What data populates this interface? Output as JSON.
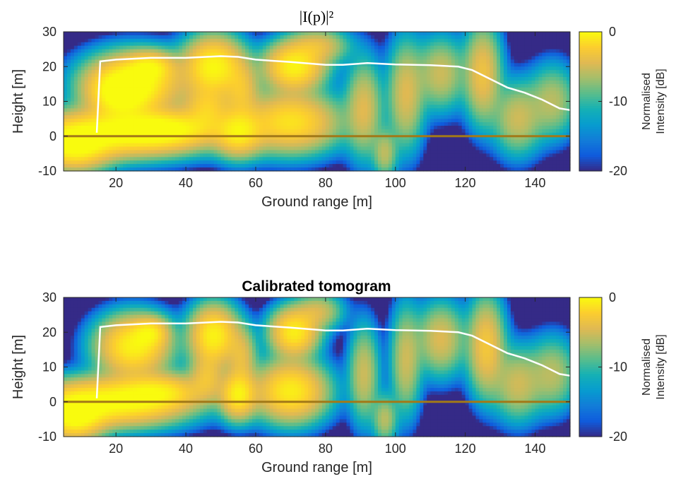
{
  "chart_data": [
    {
      "type": "heatmap",
      "title": "|I(p)|²",
      "xlabel": "Ground range [m]",
      "ylabel": "Height [m]",
      "xlim": [
        5,
        150
      ],
      "ylim": [
        -10,
        30
      ],
      "xticks": [
        20,
        40,
        60,
        80,
        100,
        120,
        140
      ],
      "yticks": [
        -10,
        0,
        10,
        20,
        30
      ],
      "colorbar": {
        "label_line1": "Normalised",
        "label_line2": "Intensity [dB]",
        "ticks": [
          0,
          -10,
          -20
        ],
        "range": [
          -20,
          0
        ],
        "colormap": "parula"
      },
      "blobs": [
        {
          "x": 25,
          "y": 15,
          "amp": 1.0,
          "sx": 8,
          "sy": 5
        },
        {
          "x": 21,
          "y": 12,
          "amp": 0.7,
          "sx": 5,
          "sy": 4
        },
        {
          "x": 30,
          "y": 20,
          "amp": 0.55,
          "sx": 4,
          "sy": 2.5
        },
        {
          "x": 22,
          "y": 1,
          "amp": 1.0,
          "sx": 14,
          "sy": 4
        },
        {
          "x": 8,
          "y": -3,
          "amp": 0.9,
          "sx": 6,
          "sy": 4
        },
        {
          "x": 35,
          "y": 2,
          "amp": 0.6,
          "sx": 8,
          "sy": 3
        },
        {
          "x": 48,
          "y": 20,
          "amp": 0.95,
          "sx": 5,
          "sy": 5
        },
        {
          "x": 46,
          "y": 8,
          "amp": 0.5,
          "sx": 4,
          "sy": 4
        },
        {
          "x": 55,
          "y": 1,
          "amp": 0.75,
          "sx": 4,
          "sy": 4
        },
        {
          "x": 56,
          "y": 13,
          "amp": 0.4,
          "sx": 3,
          "sy": 5
        },
        {
          "x": 71,
          "y": 20,
          "amp": 0.9,
          "sx": 5,
          "sy": 4
        },
        {
          "x": 70,
          "y": 4,
          "amp": 0.75,
          "sx": 8,
          "sy": 5
        },
        {
          "x": 78,
          "y": 26,
          "amp": 0.35,
          "sx": 5,
          "sy": 3
        },
        {
          "x": 91,
          "y": 8,
          "amp": 0.35,
          "sx": 3,
          "sy": 8
        },
        {
          "x": 103,
          "y": 12,
          "amp": 0.35,
          "sx": 3,
          "sy": 9
        },
        {
          "x": 113,
          "y": 18,
          "amp": 0.3,
          "sx": 4,
          "sy": 6
        },
        {
          "x": 125,
          "y": 18,
          "amp": 0.45,
          "sx": 3,
          "sy": 8
        },
        {
          "x": 135,
          "y": 5,
          "amp": 0.3,
          "sx": 4,
          "sy": 6
        },
        {
          "x": 145,
          "y": 10,
          "amp": 0.25,
          "sx": 4,
          "sy": 6
        },
        {
          "x": 97,
          "y": -5,
          "amp": 0.25,
          "sx": 2,
          "sy": 4
        }
      ],
      "surface_line": {
        "color": "#ffffff",
        "x": [
          14.5,
          15.5,
          20,
          30,
          40,
          50,
          55,
          60,
          70,
          80,
          85,
          92,
          100,
          110,
          118,
          122,
          127,
          132,
          137,
          142,
          147,
          150
        ],
        "y": [
          1,
          21.5,
          22,
          22.5,
          22.5,
          23,
          22.8,
          22,
          21.3,
          20.5,
          20.5,
          21,
          20.6,
          20.4,
          20,
          19,
          16.5,
          14,
          12.5,
          10.5,
          8,
          7.5
        ]
      },
      "ground_line": {
        "color": "#a27918",
        "y": 0
      }
    },
    {
      "type": "heatmap",
      "title": "Calibrated tomogram",
      "xlabel": "Ground range [m]",
      "ylabel": "Height [m]",
      "xlim": [
        5,
        150
      ],
      "ylim": [
        -10,
        30
      ],
      "xticks": [
        20,
        40,
        60,
        80,
        100,
        120,
        140
      ],
      "yticks": [
        -10,
        0,
        10,
        20,
        30
      ],
      "colorbar": {
        "label_line1": "Normalised",
        "label_line2": "Intensity [dB]",
        "ticks": [
          0,
          -10,
          -20
        ],
        "range": [
          -20,
          0
        ],
        "colormap": "parula"
      },
      "blobs": [
        {
          "x": 25,
          "y": 16,
          "amp": 0.9,
          "sx": 6,
          "sy": 5
        },
        {
          "x": 30,
          "y": 20,
          "amp": 0.5,
          "sx": 3,
          "sy": 2.5
        },
        {
          "x": 20,
          "y": 0,
          "amp": 1.0,
          "sx": 12,
          "sy": 4
        },
        {
          "x": 8,
          "y": -4,
          "amp": 1.0,
          "sx": 5,
          "sy": 4
        },
        {
          "x": 33,
          "y": 3,
          "amp": 0.55,
          "sx": 7,
          "sy": 3
        },
        {
          "x": 48,
          "y": 19,
          "amp": 0.9,
          "sx": 4,
          "sy": 5
        },
        {
          "x": 46,
          "y": 7,
          "amp": 0.4,
          "sx": 3,
          "sy": 4
        },
        {
          "x": 55,
          "y": 2,
          "amp": 0.85,
          "sx": 3,
          "sy": 4
        },
        {
          "x": 56,
          "y": 13,
          "amp": 0.35,
          "sx": 2.5,
          "sy": 5
        },
        {
          "x": 71,
          "y": 20,
          "amp": 0.85,
          "sx": 4,
          "sy": 4
        },
        {
          "x": 70,
          "y": 3,
          "amp": 0.85,
          "sx": 6,
          "sy": 5
        },
        {
          "x": 78,
          "y": 26,
          "amp": 0.3,
          "sx": 4,
          "sy": 3
        },
        {
          "x": 91,
          "y": 8,
          "amp": 0.3,
          "sx": 2.5,
          "sy": 8
        },
        {
          "x": 103,
          "y": 12,
          "amp": 0.3,
          "sx": 2.5,
          "sy": 9
        },
        {
          "x": 113,
          "y": 18,
          "amp": 0.35,
          "sx": 4,
          "sy": 6
        },
        {
          "x": 126,
          "y": 16,
          "amp": 0.5,
          "sx": 3,
          "sy": 8
        },
        {
          "x": 135,
          "y": 5,
          "amp": 0.3,
          "sx": 4,
          "sy": 6
        },
        {
          "x": 145,
          "y": 8,
          "amp": 0.25,
          "sx": 4,
          "sy": 6
        },
        {
          "x": 97,
          "y": -5,
          "amp": 0.25,
          "sx": 2,
          "sy": 4
        }
      ],
      "surface_line": {
        "color": "#ffffff",
        "x": [
          14.5,
          15.5,
          20,
          30,
          40,
          50,
          55,
          60,
          70,
          80,
          85,
          92,
          100,
          110,
          118,
          122,
          127,
          132,
          137,
          142,
          147,
          150
        ],
        "y": [
          1,
          21.5,
          22,
          22.5,
          22.5,
          23,
          22.8,
          22,
          21.3,
          20.5,
          20.5,
          21,
          20.6,
          20.4,
          20,
          19,
          16.5,
          14,
          12.5,
          10.5,
          8,
          7.5
        ]
      },
      "ground_line": {
        "color": "#a27918",
        "y": 0
      }
    }
  ]
}
